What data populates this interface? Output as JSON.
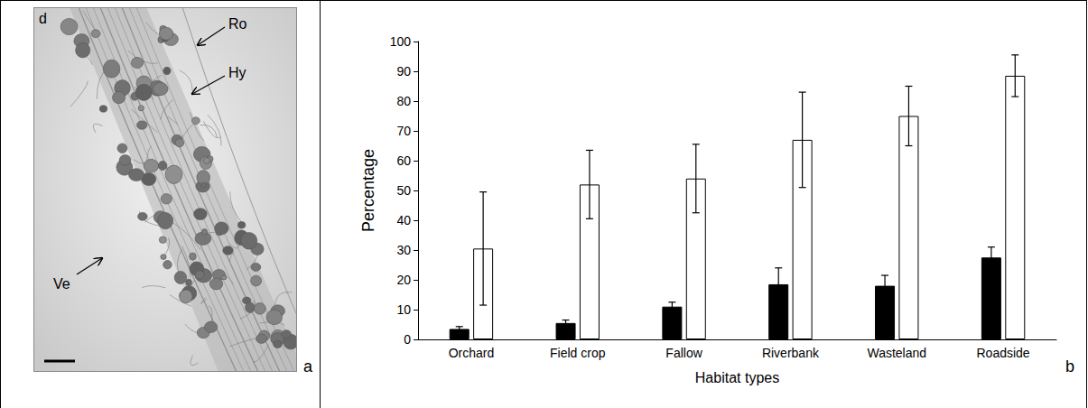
{
  "chart_data": {
    "type": "bar",
    "categories": [
      "Orchard",
      "Field crop",
      "Fallow",
      "Riverbank",
      "Wasteland",
      "Roadside"
    ],
    "series": [
      {
        "color": "#000000",
        "values": [
          3.5,
          5.5,
          11,
          18.5,
          18,
          27.5
        ],
        "errors": [
          0.8,
          1,
          1.5,
          5.5,
          3.5,
          3.5
        ]
      },
      {
        "color": "#ffffff",
        "values": [
          30.5,
          52,
          54,
          67,
          75,
          88.5
        ],
        "errors": [
          19,
          11.5,
          11.5,
          16,
          10,
          7
        ]
      }
    ],
    "xlabel": "Habitat types",
    "ylabel": "Percentage",
    "ylim": [
      0,
      100
    ],
    "yticks": [
      0,
      10,
      20,
      30,
      40,
      50,
      60,
      70,
      80,
      90,
      100
    ],
    "grid": false
  },
  "image_panel": {
    "inset_letter": "d",
    "annotations": [
      "Ro",
      "Hy",
      "Ve"
    ]
  },
  "panel_letters": [
    "a",
    "b"
  ]
}
